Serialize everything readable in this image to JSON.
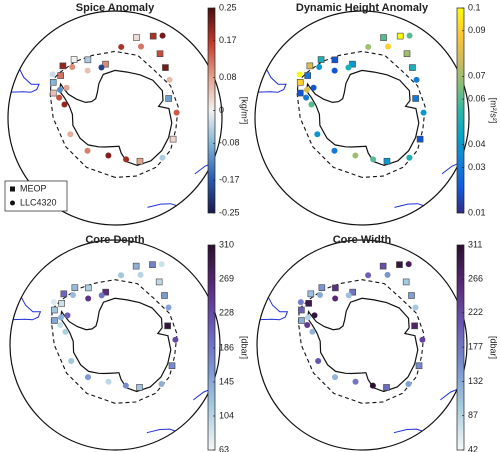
{
  "chart_data": [
    {
      "type": "scatter",
      "title": "Spice Anomaly",
      "colorbar_label": "[kg/m³]",
      "clim": [
        -0.25,
        0.25
      ],
      "cticks": [
        -0.25,
        -0.17,
        -0.08,
        0,
        0.08,
        0.17,
        0.25
      ],
      "colormap": [
        "#1a1a4e",
        "#2b5bb0",
        "#7fb3d5",
        "#f2f2f2",
        "#e3a08a",
        "#c0392b",
        "#4a0d0d"
      ],
      "latlim": [
        -90,
        -45
      ],
      "series": [
        {
          "name": "MEOP",
          "marker": "square",
          "lon": [
            -68,
            -60,
            -52,
            -45,
            -35,
            -25,
            -10,
            15,
            25,
            35,
            45,
            70,
            110,
            150
          ],
          "lat": [
            -62,
            -60,
            -61,
            -59,
            -60,
            -63,
            -67,
            -55,
            -52,
            -57,
            -60,
            -66,
            -64,
            -69
          ],
          "values": [
            0.05,
            -0.08,
            0.12,
            0.2,
            0.0,
            -0.05,
            0.1,
            0.02,
            0.18,
            0.15,
            0.22,
            -0.1,
            0.03,
            0.08
          ]
        },
        {
          "name": "LLC4320",
          "marker": "circle",
          "lon": [
            -75,
            -70,
            -63,
            -58,
            -55,
            -40,
            -30,
            -15,
            5,
            20,
            30,
            55,
            85,
            130,
            165,
            -170,
            -140,
            -110
          ],
          "lat": [
            -68,
            -65,
            -64,
            -66,
            -58,
            -62,
            -67,
            -68,
            -60,
            -58,
            -50,
            -62,
            -64,
            -64,
            -72,
            -74,
            -72,
            -70
          ],
          "values": [
            0.2,
            0.15,
            -0.12,
            0.08,
            -0.03,
            0.1,
            0.05,
            -0.2,
            0.18,
            0.12,
            0.22,
            0.06,
            0.14,
            -0.05,
            0.19,
            0.21,
            0.11,
            0.07
          ]
        }
      ]
    },
    {
      "type": "scatter",
      "title": "Dynamic Height Anomaly",
      "colorbar_label": "[m²/s²]",
      "clim": [
        0.01,
        0.1
      ],
      "cticks": [
        0.01,
        0.03,
        0.04,
        0.06,
        0.07,
        0.09,
        0.1
      ],
      "colormap": [
        "#352a87",
        "#0f5cdd",
        "#1481d6",
        "#06a4ca",
        "#2eb7a4",
        "#87bf77",
        "#d1bb59",
        "#fec832",
        "#f9fb0e"
      ],
      "latlim": [
        -90,
        -45
      ],
      "series": [
        {
          "marker": "square",
          "lon": [
            -68,
            -60,
            -52,
            -45,
            -35,
            -25,
            -10,
            15,
            25,
            35,
            45,
            70,
            110,
            150
          ],
          "lat": [
            -62,
            -60,
            -61,
            -59,
            -60,
            -63,
            -67,
            -55,
            -52,
            -57,
            -60,
            -66,
            -64,
            -69
          ],
          "values": [
            0.02,
            0.09,
            0.03,
            0.08,
            0.05,
            0.02,
            0.04,
            0.06,
            0.1,
            0.07,
            0.05,
            0.03,
            0.02,
            0.04
          ]
        },
        {
          "marker": "circle",
          "lon": [
            -75,
            -70,
            -63,
            -58,
            -55,
            -40,
            -30,
            -15,
            5,
            20,
            30,
            55,
            85,
            130,
            165,
            -170,
            -140,
            -110
          ],
          "lat": [
            -68,
            -65,
            -64,
            -66,
            -58,
            -62,
            -67,
            -68,
            -60,
            -58,
            -50,
            -62,
            -64,
            -64,
            -72,
            -74,
            -72,
            -70
          ],
          "values": [
            0.06,
            0.03,
            0.08,
            0.02,
            0.1,
            0.04,
            0.02,
            0.05,
            0.07,
            0.09,
            0.06,
            0.03,
            0.04,
            0.05,
            0.06,
            0.07,
            0.03,
            0.04
          ]
        }
      ]
    },
    {
      "type": "scatter",
      "title": "Core Depth",
      "colorbar_label": "[dbar]",
      "clim": [
        63,
        310
      ],
      "cticks": [
        63,
        104,
        145,
        186,
        228,
        269,
        310
      ],
      "colormap": [
        "#f7f7f7",
        "#a9cfe0",
        "#7a95d1",
        "#6a5cb8",
        "#5a2a7a",
        "#2a0f2e"
      ],
      "latlim": [
        -90,
        -45
      ],
      "series": [
        {
          "marker": "square",
          "lon": [
            -68,
            -60,
            -52,
            -45,
            -35,
            -25,
            -10,
            15,
            25,
            35,
            45,
            70,
            110,
            150
          ],
          "lat": [
            -62,
            -60,
            -61,
            -59,
            -60,
            -63,
            -67,
            -55,
            -52,
            -57,
            -60,
            -66,
            -64,
            -69
          ],
          "values": [
            150,
            120,
            90,
            200,
            130,
            110,
            260,
            140,
            180,
            100,
            160,
            300,
            170,
            120
          ]
        },
        {
          "marker": "circle",
          "lon": [
            -75,
            -70,
            -63,
            -58,
            -55,
            -40,
            -30,
            -15,
            5,
            20,
            30,
            55,
            85,
            130,
            165,
            -170,
            -140,
            -110
          ],
          "lat": [
            -68,
            -65,
            -64,
            -66,
            -58,
            -62,
            -67,
            -68,
            -60,
            -58,
            -50,
            -62,
            -64,
            -64,
            -72,
            -74,
            -72,
            -70
          ],
          "values": [
            110,
            95,
            140,
            210,
            80,
            130,
            250,
            190,
            120,
            105,
            90,
            150,
            230,
            140,
            170,
            100,
            160,
            120
          ]
        }
      ]
    },
    {
      "type": "scatter",
      "title": "Core Width",
      "colorbar_label": "[dbar]",
      "clim": [
        42,
        311
      ],
      "cticks": [
        42,
        87,
        132,
        177,
        222,
        266,
        311
      ],
      "colormap": [
        "#f7f7f7",
        "#a9cfe0",
        "#7a95d1",
        "#6a5cb8",
        "#5a2a7a",
        "#2a0f2e"
      ],
      "latlim": [
        -90,
        -45
      ],
      "series": [
        {
          "marker": "square",
          "lon": [
            -68,
            -60,
            -52,
            -45,
            -35,
            -25,
            -10,
            15,
            25,
            35,
            45,
            70,
            110,
            150
          ],
          "lat": [
            -62,
            -60,
            -61,
            -59,
            -60,
            -63,
            -67,
            -55,
            -52,
            -57,
            -60,
            -66,
            -64,
            -69
          ],
          "values": [
            130,
            200,
            290,
            110,
            150,
            250,
            180,
            220,
            300,
            100,
            140,
            270,
            160,
            190
          ]
        },
        {
          "marker": "circle",
          "lon": [
            -75,
            -70,
            -63,
            -58,
            -55,
            -40,
            -30,
            -15,
            5,
            20,
            30,
            55,
            85,
            130,
            165,
            -170,
            -140,
            -110
          ],
          "lat": [
            -68,
            -65,
            -64,
            -66,
            -58,
            -62,
            -67,
            -68,
            -60,
            -58,
            -50,
            -62,
            -64,
            -64,
            -72,
            -74,
            -72,
            -70
          ],
          "values": [
            120,
            240,
            90,
            300,
            170,
            130,
            260,
            110,
            200,
            150,
            280,
            100,
            230,
            140,
            310,
            180,
            120,
            210
          ]
        }
      ]
    }
  ]
}
